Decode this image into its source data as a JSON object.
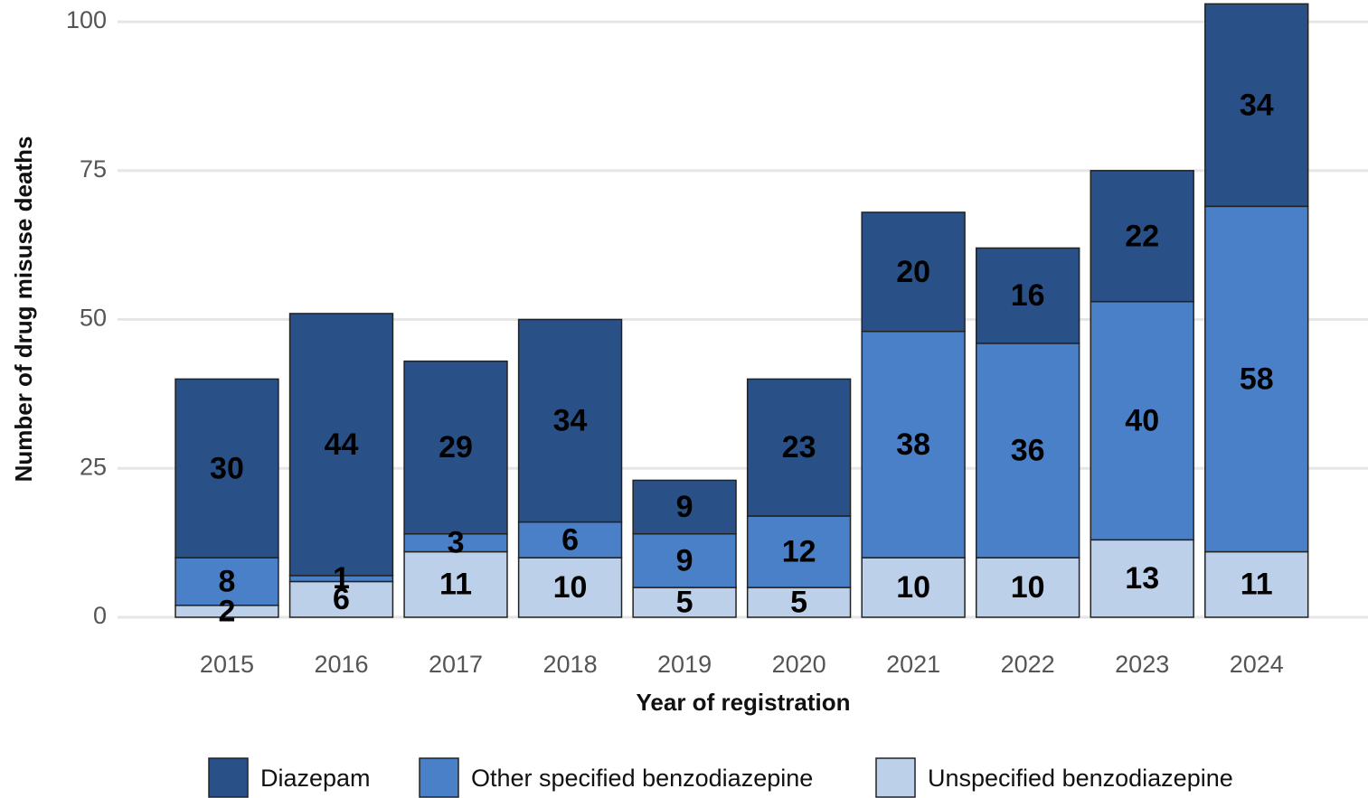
{
  "chart_data": {
    "type": "stacked_bar",
    "x_label": "Year of registration",
    "y_label": "Number of drug misuse deaths",
    "categories": [
      "2015",
      "2016",
      "2017",
      "2018",
      "2019",
      "2020",
      "2021",
      "2022",
      "2023",
      "2024"
    ],
    "series": [
      {
        "name": "Unspecified benzodiazepine",
        "color": "#bdd0ea",
        "values": [
          2,
          6,
          11,
          10,
          5,
          5,
          10,
          10,
          13,
          11
        ]
      },
      {
        "name": "Other specified benzodiazepine",
        "color": "#4a80c8",
        "values": [
          8,
          1,
          3,
          6,
          9,
          12,
          38,
          36,
          40,
          58
        ]
      },
      {
        "name": "Diazepam",
        "color": "#2a5088",
        "values": [
          30,
          44,
          29,
          34,
          9,
          23,
          20,
          16,
          22,
          34
        ]
      }
    ],
    "ylim": [
      0,
      103.5
    ],
    "yticks": [
      0,
      25,
      50,
      75,
      100
    ],
    "grid": true,
    "legend": "bottom"
  }
}
